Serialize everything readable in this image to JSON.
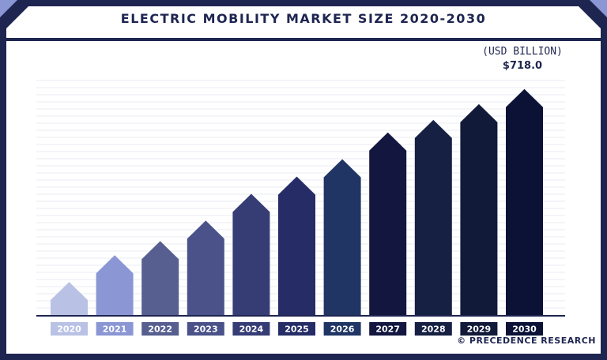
{
  "chart_data": {
    "type": "bar",
    "title": "ELECTRIC MOBILITY MARKET SIZE 2020-2030",
    "unit_label": "(USD BILLION)",
    "categories": [
      "2020",
      "2021",
      "2022",
      "2023",
      "2024",
      "2025",
      "2026",
      "2027",
      "2028",
      "2029",
      "2030"
    ],
    "values": [
      105,
      190,
      235,
      300,
      385,
      440,
      495,
      580,
      620,
      670,
      718
    ],
    "annotations": [
      {
        "category": "2030",
        "text": "$718.0"
      }
    ],
    "ylim": [
      0,
      750
    ],
    "grid": true,
    "colors": [
      "#b9c2e4",
      "#8b97d4",
      "#565f8f",
      "#4a5289",
      "#363d75",
      "#252c66",
      "#203563",
      "#13173f",
      "#162042",
      "#111a38",
      "#0b1236"
    ]
  },
  "credit": "© PRECEDENCE RESEARCH"
}
